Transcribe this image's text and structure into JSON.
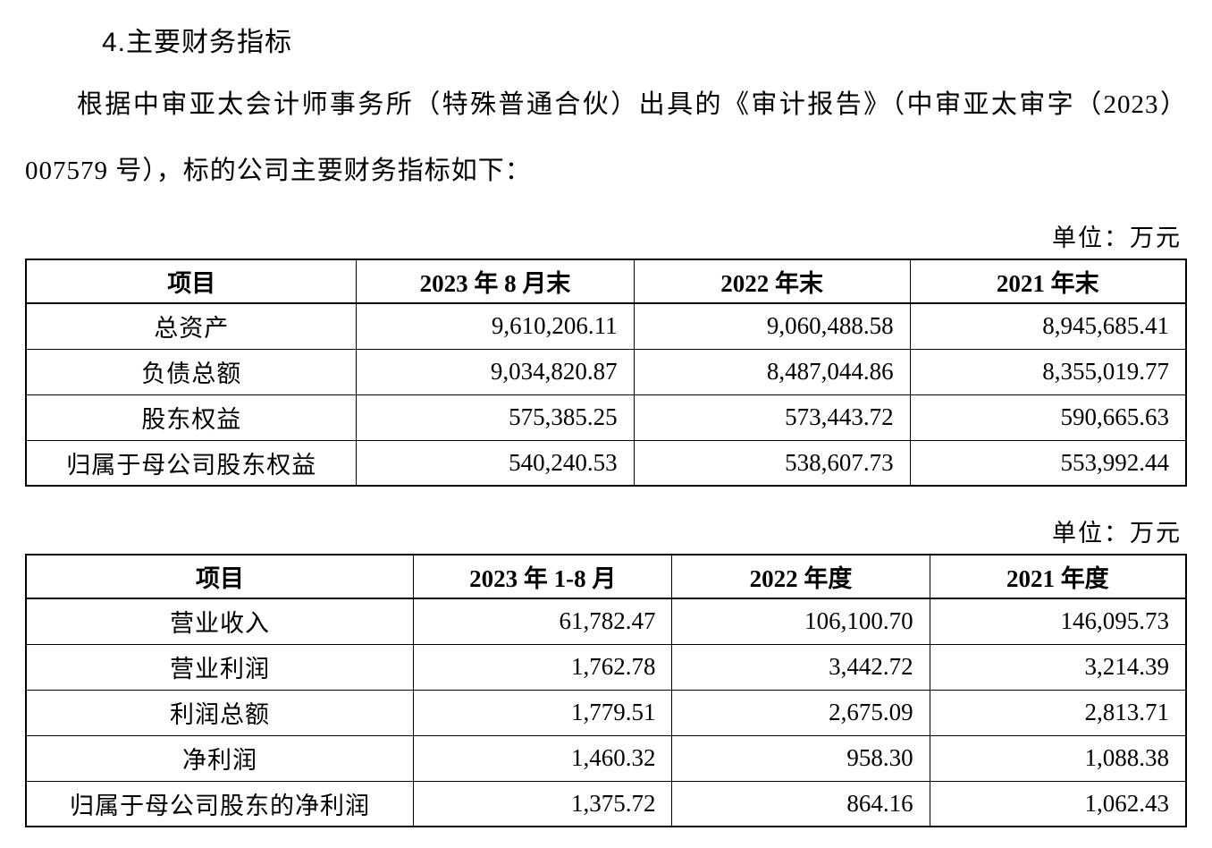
{
  "page": {
    "section_title": "4.主要财务指标",
    "paragraph": "根据中审亚太会计师事务所（特殊普通合伙）出具的《审计报告》（中审亚太审字（2023）007579 号），标的公司主要财务指标如下："
  },
  "tables": [
    {
      "unit_label": "单位：万元",
      "headers": [
        "项目",
        "2023 年 8 月末",
        "2022 年末",
        "2021 年末"
      ],
      "rows": [
        [
          "总资产",
          "9,610,206.11",
          "9,060,488.58",
          "8,945,685.41"
        ],
        [
          "负债总额",
          "9,034,820.87",
          "8,487,044.86",
          "8,355,019.77"
        ],
        [
          "股东权益",
          "575,385.25",
          "573,443.72",
          "590,665.63"
        ],
        [
          "归属于母公司股东权益",
          "540,240.53",
          "538,607.73",
          "553,992.44"
        ]
      ]
    },
    {
      "unit_label": "单位：万元",
      "headers": [
        "项目",
        "2023 年 1-8 月",
        "2022 年度",
        "2021 年度"
      ],
      "rows": [
        [
          "营业收入",
          "61,782.47",
          "106,100.70",
          "146,095.73"
        ],
        [
          "营业利润",
          "1,762.78",
          "3,442.72",
          "3,214.39"
        ],
        [
          "利润总额",
          "1,779.51",
          "2,675.09",
          "2,813.71"
        ],
        [
          "净利润",
          "1,460.32",
          "958.30",
          "1,088.38"
        ],
        [
          "归属于母公司股东的净利润",
          "1,375.72",
          "864.16",
          "1,062.43"
        ]
      ]
    }
  ]
}
